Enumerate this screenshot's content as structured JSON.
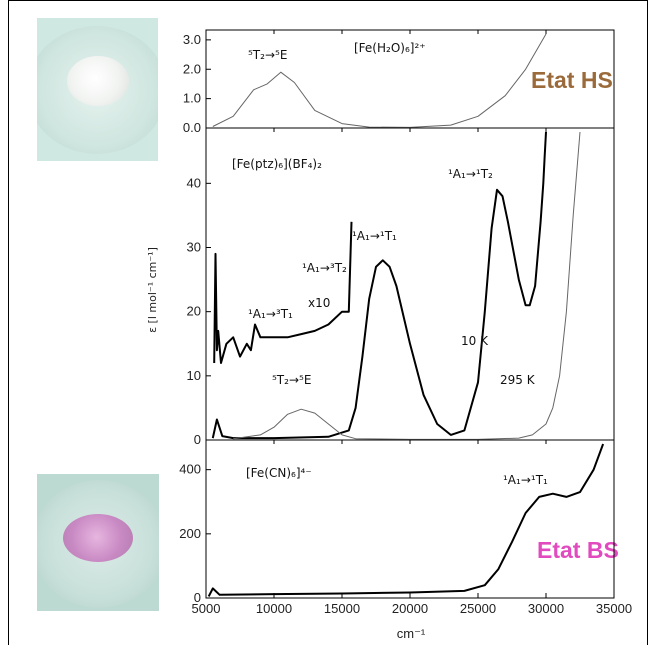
{
  "state_labels": {
    "hs": "Etat HS",
    "bs": "Etat BS"
  },
  "colors": {
    "hs": "#9b6a3a",
    "bs": "#e14bbf",
    "curve_dark": "#000000",
    "curve_light": "#666666"
  },
  "chart_data": [
    {
      "type": "line",
      "panel": "top",
      "compound": "[Fe(H₂O)₆]²⁺",
      "xlim": [
        5000,
        35000
      ],
      "ylim": [
        0,
        3.2
      ],
      "yticks": [
        "0.0",
        "1.0",
        "2.0",
        "3.0"
      ],
      "annotations": [
        {
          "text": "⁵T₂→⁵E"
        }
      ],
      "series": [
        {
          "style": "thin",
          "x": [
            5500,
            7000,
            8500,
            9500,
            10500,
            11500,
            13000,
            15000,
            17000,
            20000,
            23000,
            25000,
            27000,
            28500,
            29500,
            30000
          ],
          "y": [
            0.05,
            0.4,
            1.3,
            1.5,
            1.9,
            1.55,
            0.6,
            0.15,
            0.03,
            0.02,
            0.1,
            0.4,
            1.1,
            2.0,
            2.8,
            3.3
          ]
        }
      ]
    },
    {
      "type": "line",
      "panel": "middle",
      "compound": "[Fe(ptz)₆](BF₄)₂",
      "xlim": [
        5000,
        35000
      ],
      "ylim": [
        0,
        48
      ],
      "yticks": [
        "0",
        "10",
        "20",
        "30",
        "40"
      ],
      "ylabel": "ε [l mol⁻¹ cm⁻¹]",
      "annotations": [
        {
          "text": "¹A₁→³T₁"
        },
        {
          "text": "x10"
        },
        {
          "text": "¹A₁→³T₂"
        },
        {
          "text": "¹A₁→¹T₁"
        },
        {
          "text": "¹A₁→¹T₂"
        },
        {
          "text": "10 K"
        },
        {
          "text": "295 K"
        },
        {
          "text": "⁵T₂→⁵E"
        }
      ],
      "series": [
        {
          "style": "thick",
          "x": [
            5600,
            5700,
            5800,
            5900,
            6100,
            6500,
            7000,
            7500,
            8000,
            8300,
            8600,
            9000,
            10000,
            11000,
            12000,
            13000,
            14000,
            15000,
            15500,
            15700
          ],
          "y": [
            12,
            29,
            14,
            17,
            12,
            15,
            16,
            13,
            15,
            14,
            18,
            16,
            16,
            16,
            16.5,
            17,
            18,
            20,
            20,
            34
          ]
        },
        {
          "style": "thick",
          "x": [
            5500,
            5800,
            6200,
            7000,
            10000,
            14000,
            15500,
            16000,
            16500,
            17000,
            17500,
            18000,
            18500,
            19000,
            20000,
            21000,
            22000,
            23000,
            24000,
            25000,
            25500,
            26000,
            26400,
            26800,
            27200,
            28000,
            28500,
            28800,
            29200,
            29600,
            29800,
            29900,
            30000
          ],
          "y": [
            0.3,
            3.2,
            0.6,
            0.3,
            0.3,
            0.5,
            1.5,
            5,
            13,
            22,
            27,
            28,
            27,
            24,
            15,
            7,
            2.5,
            0.8,
            1.5,
            9,
            20,
            33,
            39,
            38,
            34,
            25,
            21,
            21,
            24,
            34,
            40,
            44,
            48
          ]
        },
        {
          "style": "thin",
          "x": [
            7000,
            9000,
            10000,
            11000,
            12000,
            13000,
            14000,
            15000,
            16000,
            20000,
            25000,
            28000,
            29000,
            30000,
            30500,
            31000,
            31500,
            32000,
            32500
          ],
          "y": [
            0.2,
            0.8,
            2.0,
            4.0,
            4.8,
            4.2,
            2.5,
            0.8,
            0.2,
            0.1,
            0.1,
            0.3,
            0.8,
            2.5,
            5,
            10,
            20,
            35,
            48
          ]
        }
      ]
    },
    {
      "type": "line",
      "panel": "bottom",
      "compound": "[Fe(CN)₆]⁴⁻",
      "xlim": [
        5000,
        35000
      ],
      "ylim": [
        0,
        480
      ],
      "yticks": [
        "0",
        "200",
        "400"
      ],
      "xlabel": "cm⁻¹",
      "xticks": [
        "5000",
        "10000",
        "15000",
        "20000",
        "25000",
        "30000",
        "35000"
      ],
      "annotations": [
        {
          "text": "¹A₁→¹T₁"
        }
      ],
      "series": [
        {
          "style": "thick",
          "x": [
            5200,
            5500,
            6000,
            10000,
            15000,
            20000,
            24000,
            25500,
            26500,
            27500,
            28500,
            29500,
            30500,
            31500,
            32500,
            33500,
            34200
          ],
          "y": [
            5,
            30,
            10,
            12,
            14,
            17,
            22,
            40,
            90,
            175,
            265,
            315,
            325,
            315,
            330,
            400,
            480
          ]
        }
      ]
    }
  ]
}
